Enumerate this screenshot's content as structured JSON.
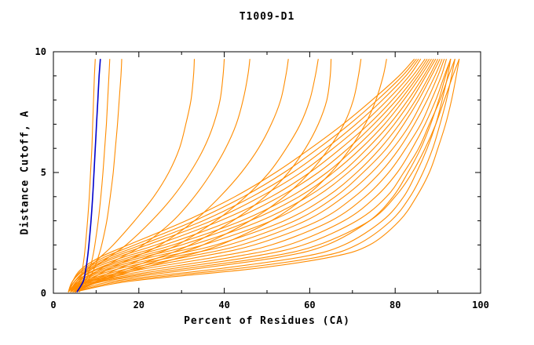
{
  "chart_data": {
    "type": "line",
    "title": "T1009-D1",
    "xlabel": "Percent of Residues (CA)",
    "ylabel": "Distance Cutoff, A",
    "xlim": [
      0,
      100
    ],
    "ylim": [
      0,
      10
    ],
    "x_ticks": [
      0,
      20,
      40,
      60,
      80,
      100
    ],
    "y_ticks": [
      0,
      5,
      10
    ],
    "x_minor_ticks": [
      10,
      30,
      50,
      70,
      90
    ],
    "y_minor_ticks": [
      1,
      2,
      3,
      4,
      6,
      7,
      8,
      9
    ],
    "grid": false,
    "legend": "none",
    "colors": {
      "orange": "#ff8c00",
      "blue": "#0000cc",
      "axis": "#000000"
    },
    "y_grid": [
      0.05,
      0.5,
      1,
      1.5,
      2,
      3,
      4,
      5,
      6,
      7,
      8,
      9,
      9.7
    ],
    "series": [
      {
        "name": "model",
        "color": "orange",
        "x": [
          5,
          6.2,
          6.8,
          7.2,
          7.5,
          8,
          8.4,
          8.7,
          9,
          9.2,
          9.4,
          9.6,
          9.8
        ]
      },
      {
        "name": "model",
        "color": "orange",
        "x": [
          5.5,
          7.5,
          8.5,
          9.2,
          9.7,
          10.5,
          11.1,
          11.6,
          12,
          12.4,
          12.7,
          13,
          13.2
        ]
      },
      {
        "name": "model",
        "color": "orange",
        "x": [
          6,
          8,
          9.5,
          10.5,
          11.3,
          12.5,
          13.3,
          14,
          14.5,
          15,
          15.4,
          15.8,
          16
        ]
      },
      {
        "name": "model",
        "color": "orange",
        "x": [
          3.5,
          5.5,
          8,
          11,
          14,
          19,
          23.5,
          27,
          29.5,
          31,
          32.2,
          32.8,
          33
        ]
      },
      {
        "name": "model",
        "color": "orange",
        "x": [
          3.5,
          6,
          9,
          13,
          17,
          23,
          28,
          32,
          35.2,
          37.5,
          39,
          39.7,
          40
        ]
      },
      {
        "name": "model",
        "color": "orange",
        "x": [
          4,
          7,
          11,
          16,
          21,
          28,
          33,
          37,
          40.3,
          42.8,
          44.4,
          45.5,
          46
        ]
      },
      {
        "name": "model",
        "color": "orange",
        "x": [
          4,
          8,
          13,
          19,
          25,
          33,
          39,
          44,
          48,
          51,
          53.2,
          54.4,
          55
        ]
      },
      {
        "name": "model",
        "color": "orange",
        "x": [
          4.5,
          9,
          15,
          22,
          29,
          38,
          45,
          50.5,
          54.5,
          57.8,
          60,
          61.3,
          62
        ]
      },
      {
        "name": "model",
        "color": "orange",
        "x": [
          4.5,
          10,
          17,
          25,
          32,
          42,
          49.5,
          55,
          59,
          62,
          64,
          64.8,
          65
        ]
      },
      {
        "name": "model",
        "color": "orange",
        "x": [
          5,
          10.5,
          18.5,
          27,
          35,
          46,
          54,
          60,
          64.5,
          68,
          70.2,
          71.4,
          72
        ]
      },
      {
        "name": "model",
        "color": "orange",
        "x": [
          5,
          11,
          20,
          30,
          39,
          51,
          59,
          65,
          69.5,
          73,
          75.5,
          77.2,
          78
        ]
      },
      {
        "name": "model",
        "color": "orange",
        "x": [
          5,
          18,
          46,
          65,
          74,
          81,
          85,
          88,
          90,
          91.8,
          93.2,
          94.3,
          95
        ]
      },
      {
        "name": "model",
        "color": "orange",
        "x": [
          5,
          16,
          42,
          62,
          71,
          79,
          83.5,
          86.5,
          88.8,
          90.5,
          92,
          93.2,
          94
        ]
      },
      {
        "name": "model",
        "color": "orange",
        "x": [
          5,
          14,
          38,
          58,
          68,
          77,
          82,
          85,
          87.5,
          89.5,
          91,
          92.3,
          93
        ]
      },
      {
        "name": "model",
        "color": "orange",
        "x": [
          4.5,
          12,
          33,
          53,
          64,
          74,
          79.5,
          83,
          86,
          88.3,
          90.2,
          91.8,
          93
        ]
      },
      {
        "name": "model",
        "color": "orange",
        "x": [
          4.5,
          11,
          30,
          50,
          62,
          74,
          80,
          84,
          87,
          89.5,
          91.5,
          93.5,
          95
        ]
      },
      {
        "name": "model",
        "color": "orange",
        "x": [
          4.5,
          10,
          27,
          46,
          58.5,
          71,
          78,
          82,
          85.5,
          88,
          90.5,
          92.5,
          94
        ]
      },
      {
        "name": "model",
        "color": "orange",
        "x": [
          4.5,
          9,
          24,
          42,
          55,
          68,
          75.5,
          80.5,
          84,
          87,
          89.5,
          91.5,
          93
        ]
      },
      {
        "name": "model",
        "color": "orange",
        "x": [
          4,
          8.5,
          21,
          38,
          51,
          65,
          73,
          78.5,
          82.5,
          86,
          88.5,
          90.8,
          92
        ]
      },
      {
        "name": "model",
        "color": "orange",
        "x": [
          4,
          8,
          19,
          34,
          47,
          62,
          70.5,
          76.5,
          81,
          84.5,
          87.5,
          90,
          91.5
        ]
      },
      {
        "name": "model",
        "color": "orange",
        "x": [
          4,
          7.5,
          17,
          31,
          44,
          59,
          68,
          74.5,
          79.5,
          83.5,
          86.5,
          89.3,
          91
        ]
      },
      {
        "name": "model",
        "color": "orange",
        "x": [
          4,
          7,
          15,
          28,
          41,
          56.5,
          66,
          72.5,
          78,
          82,
          85.5,
          88.5,
          90.5
        ]
      },
      {
        "name": "model",
        "color": "orange",
        "x": [
          4,
          6.5,
          13.5,
          25.5,
          38,
          54,
          64,
          71,
          76.5,
          81,
          84.8,
          88,
          90
        ]
      },
      {
        "name": "model",
        "color": "orange",
        "x": [
          4,
          6,
          12.5,
          23,
          35,
          51,
          61.5,
          69,
          75,
          79.8,
          83.8,
          87.2,
          89.5
        ]
      },
      {
        "name": "model",
        "color": "orange",
        "x": [
          4,
          6,
          11.5,
          21,
          32.5,
          48.5,
          59.5,
          67.5,
          73.5,
          78.7,
          83,
          86.7,
          89
        ]
      },
      {
        "name": "model",
        "color": "orange",
        "x": [
          4,
          5.5,
          10.5,
          19.5,
          30,
          46,
          57.5,
          65.5,
          72,
          77.5,
          82,
          86,
          88.5
        ]
      },
      {
        "name": "model",
        "color": "orange",
        "x": [
          4,
          5.5,
          10,
          18,
          28,
          44,
          55.5,
          64,
          70.5,
          76.3,
          81.2,
          85.4,
          88
        ]
      },
      {
        "name": "model",
        "color": "orange",
        "x": [
          3.5,
          5,
          9,
          16.5,
          26,
          41.5,
          53,
          62,
          69,
          75,
          80.3,
          84.8,
          87.5
        ]
      },
      {
        "name": "model",
        "color": "orange",
        "x": [
          3.5,
          5,
          8.5,
          15,
          24,
          39,
          51,
          60,
          67.3,
          73.8,
          79.3,
          84.1,
          87
        ]
      },
      {
        "name": "model",
        "color": "orange",
        "x": [
          3.5,
          5,
          8,
          14,
          22,
          37,
          48.5,
          58,
          65.5,
          72.3,
          78.2,
          83.3,
          86
        ]
      },
      {
        "name": "model",
        "color": "orange",
        "x": [
          3.5,
          4.5,
          7.5,
          13,
          20.5,
          35,
          46.5,
          56,
          63.8,
          70.8,
          77,
          82.5,
          85.5
        ]
      },
      {
        "name": "model",
        "color": "orange",
        "x": [
          3.5,
          4.5,
          7,
          12,
          19,
          33,
          44.5,
          54,
          62,
          69.3,
          75.8,
          81.7,
          85
        ]
      },
      {
        "name": "model",
        "color": "orange",
        "x": [
          3.5,
          4.5,
          6.5,
          11,
          17.5,
          31,
          42.5,
          52,
          60.2,
          67.8,
          74.6,
          80.9,
          84.5
        ]
      },
      {
        "name": "highlighted-model",
        "color": "blue",
        "x": [
          5.5,
          7,
          7.6,
          8,
          8.3,
          8.8,
          9.2,
          9.5,
          9.8,
          10.1,
          10.4,
          10.7,
          11
        ]
      }
    ]
  }
}
